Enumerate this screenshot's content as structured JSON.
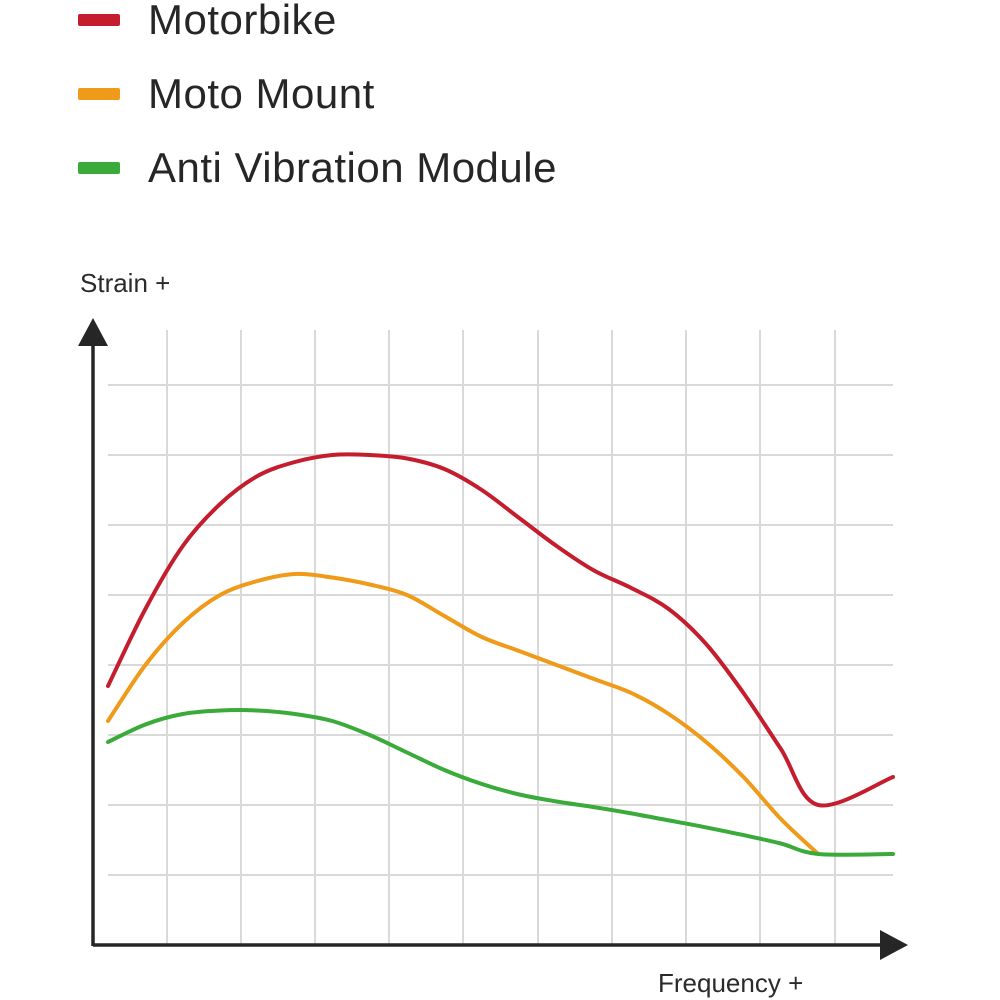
{
  "chart_data": {
    "type": "line",
    "xlabel": "Frequency +",
    "ylabel": "Strain +",
    "xlim": [
      0,
      10.5
    ],
    "ylim": [
      0,
      8
    ],
    "grid": true,
    "legend_position": "top-left",
    "series": [
      {
        "name": "Motorbike",
        "color": "#c41e2e",
        "points": [
          [
            0,
            3.7
          ],
          [
            0.5,
            4.8
          ],
          [
            1,
            5.7
          ],
          [
            1.5,
            6.3
          ],
          [
            2,
            6.7
          ],
          [
            2.5,
            6.9
          ],
          [
            3,
            7.0
          ],
          [
            3.5,
            7.0
          ],
          [
            4,
            6.95
          ],
          [
            4.5,
            6.8
          ],
          [
            5,
            6.5
          ],
          [
            5.5,
            6.1
          ],
          [
            6,
            5.7
          ],
          [
            6.5,
            5.35
          ],
          [
            7,
            5.1
          ],
          [
            7.5,
            4.8
          ],
          [
            8,
            4.3
          ],
          [
            8.5,
            3.6
          ],
          [
            9,
            2.8
          ],
          [
            9.5,
            2.0
          ],
          [
            10.5,
            2.4
          ]
        ],
        "note": ""
      },
      {
        "name": "Moto Mount",
        "color": "#f09a1a",
        "points": [
          [
            0,
            3.2
          ],
          [
            0.5,
            4.0
          ],
          [
            1,
            4.6
          ],
          [
            1.5,
            5.0
          ],
          [
            2,
            5.2
          ],
          [
            2.5,
            5.3
          ],
          [
            3,
            5.25
          ],
          [
            3.5,
            5.15
          ],
          [
            4,
            5.0
          ],
          [
            4.5,
            4.7
          ],
          [
            5,
            4.4
          ],
          [
            5.5,
            4.2
          ],
          [
            6,
            4.0
          ],
          [
            6.5,
            3.8
          ],
          [
            7,
            3.6
          ],
          [
            7.5,
            3.3
          ],
          [
            8,
            2.9
          ],
          [
            8.5,
            2.4
          ],
          [
            9,
            1.8
          ],
          [
            9.5,
            1.3
          ]
        ],
        "note": ""
      },
      {
        "name": "Anti Vibration Module",
        "color": "#3aaa3a",
        "points": [
          [
            0,
            2.9
          ],
          [
            0.5,
            3.15
          ],
          [
            1,
            3.3
          ],
          [
            1.5,
            3.35
          ],
          [
            2,
            3.35
          ],
          [
            2.5,
            3.3
          ],
          [
            3,
            3.2
          ],
          [
            3.5,
            3.0
          ],
          [
            4,
            2.75
          ],
          [
            4.5,
            2.5
          ],
          [
            5,
            2.3
          ],
          [
            5.5,
            2.15
          ],
          [
            6,
            2.05
          ],
          [
            6.5,
            1.97
          ],
          [
            7,
            1.88
          ],
          [
            7.5,
            1.78
          ],
          [
            8,
            1.68
          ],
          [
            8.5,
            1.57
          ],
          [
            9,
            1.45
          ],
          [
            9.5,
            1.3
          ],
          [
            10.5,
            1.3
          ]
        ]
      }
    ]
  }
}
